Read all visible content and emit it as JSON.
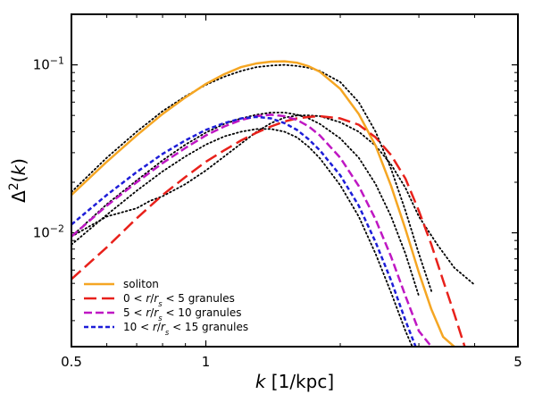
{
  "chart_data": {
    "type": "line",
    "xscale": "log",
    "yscale": "log",
    "xlim": [
      0.5,
      5
    ],
    "ylim": [
      0.0021,
      0.2
    ],
    "xlabel_parts": [
      {
        "text": "k",
        "italic": true
      },
      {
        "text": " [1/kpc]",
        "italic": false
      }
    ],
    "ylabel_parts": [
      {
        "text": "Δ",
        "italic": false
      },
      {
        "text": "2",
        "italic": false,
        "sup": true
      },
      {
        "text": "(",
        "italic": false
      },
      {
        "text": "k",
        "italic": true
      },
      {
        "text": ")",
        "italic": false
      }
    ],
    "xticks": [
      {
        "value": 0.5,
        "label": "0.5"
      },
      {
        "value": 1,
        "label": "1"
      },
      {
        "value": 5,
        "label": "5"
      }
    ],
    "xminor": [
      0.6,
      0.7,
      0.8,
      0.9,
      2,
      3,
      4
    ],
    "yticks": [
      {
        "value": 0.01,
        "base": "10",
        "exp": "−2"
      },
      {
        "value": 0.1,
        "base": "10",
        "exp": "−1"
      }
    ],
    "yminor": [
      0.003,
      0.004,
      0.005,
      0.006,
      0.007,
      0.008,
      0.009,
      0.02,
      0.03,
      0.04,
      0.05,
      0.06,
      0.07,
      0.08,
      0.09
    ],
    "legend_position": "lower-left",
    "series": [
      {
        "name": "soliton",
        "color": "#f5a623",
        "dash": "solid",
        "in_legend": true,
        "x": [
          0.5,
          0.6,
          0.7,
          0.8,
          0.9,
          1.0,
          1.1,
          1.2,
          1.3,
          1.4,
          1.5,
          1.6,
          1.7,
          1.8,
          2.0,
          2.2,
          2.4,
          2.6,
          2.8,
          3.0,
          3.2,
          3.4,
          3.6
        ],
        "y": [
          0.0168,
          0.0265,
          0.038,
          0.051,
          0.064,
          0.077,
          0.088,
          0.097,
          0.102,
          0.1045,
          0.105,
          0.103,
          0.098,
          0.091,
          0.072,
          0.051,
          0.033,
          0.019,
          0.0105,
          0.0058,
          0.0035,
          0.0024,
          0.0021
        ]
      },
      {
        "name": "0<r/r_s<5 granules",
        "legend_parts": [
          {
            "text": "0 < ",
            "italic": false
          },
          {
            "text": "r",
            "italic": true
          },
          {
            "text": "/",
            "italic": false
          },
          {
            "text": "r",
            "italic": true
          },
          {
            "text": "s",
            "italic": true,
            "sub": true
          },
          {
            "text": " < 5 granules",
            "italic": false
          }
        ],
        "color": "#e8211b",
        "dash": "long",
        "in_legend": true,
        "x": [
          0.5,
          0.6,
          0.7,
          0.8,
          0.9,
          1.0,
          1.1,
          1.2,
          1.3,
          1.4,
          1.5,
          1.6,
          1.7,
          1.8,
          2.0,
          2.2,
          2.4,
          2.6,
          2.8,
          3.0,
          3.2,
          3.4,
          3.6,
          3.8
        ],
        "y": [
          0.0053,
          0.0082,
          0.0122,
          0.0168,
          0.0215,
          0.0265,
          0.031,
          0.0355,
          0.0395,
          0.043,
          0.046,
          0.048,
          0.049,
          0.0495,
          0.048,
          0.044,
          0.037,
          0.029,
          0.021,
          0.0135,
          0.0085,
          0.0052,
          0.0033,
          0.0021
        ]
      },
      {
        "name": "5<r/r_s<10 granules",
        "legend_parts": [
          {
            "text": "5 < ",
            "italic": false
          },
          {
            "text": "r",
            "italic": true
          },
          {
            "text": "/",
            "italic": false
          },
          {
            "text": "r",
            "italic": true
          },
          {
            "text": "s",
            "italic": true,
            "sub": true
          },
          {
            "text": " < 10 granules",
            "italic": false
          }
        ],
        "color": "#bf17c3",
        "dash": "medium",
        "in_legend": true,
        "x": [
          0.5,
          0.6,
          0.7,
          0.8,
          0.9,
          1.0,
          1.1,
          1.2,
          1.3,
          1.4,
          1.5,
          1.6,
          1.7,
          1.8,
          2.0,
          2.2,
          2.4,
          2.6,
          2.8,
          3.0,
          3.2
        ],
        "y": [
          0.0095,
          0.0145,
          0.02,
          0.026,
          0.032,
          0.038,
          0.043,
          0.047,
          0.0495,
          0.0505,
          0.0495,
          0.047,
          0.043,
          0.038,
          0.028,
          0.019,
          0.012,
          0.0072,
          0.0042,
          0.0026,
          0.0021
        ]
      },
      {
        "name": "10<r/r_s<15 granules",
        "legend_parts": [
          {
            "text": "10 < ",
            "italic": false
          },
          {
            "text": "r",
            "italic": true
          },
          {
            "text": "/",
            "italic": false
          },
          {
            "text": "r",
            "italic": true
          },
          {
            "text": "s",
            "italic": true,
            "sub": true
          },
          {
            "text": " < 15 granules",
            "italic": false
          }
        ],
        "color": "#1d1dd8",
        "dash": "short",
        "in_legend": true,
        "x": [
          0.5,
          0.6,
          0.7,
          0.8,
          0.9,
          1.0,
          1.1,
          1.2,
          1.3,
          1.4,
          1.5,
          1.6,
          1.7,
          1.8,
          2.0,
          2.2,
          2.4,
          2.6,
          2.8,
          2.95
        ],
        "y": [
          0.0112,
          0.0168,
          0.023,
          0.0295,
          0.0355,
          0.041,
          0.045,
          0.048,
          0.049,
          0.048,
          0.045,
          0.041,
          0.036,
          0.031,
          0.022,
          0.0145,
          0.0088,
          0.0052,
          0.003,
          0.0021
        ]
      },
      {
        "name": "",
        "color": "#000000",
        "dash": "dotted",
        "in_legend": false,
        "x": [
          0.5,
          0.6,
          0.7,
          0.8,
          0.9,
          1.0,
          1.1,
          1.2,
          1.3,
          1.4,
          1.5,
          1.6,
          1.7,
          1.8,
          2.0,
          2.2,
          2.4,
          2.6,
          2.8,
          3.0,
          3.2
        ],
        "y": [
          0.0175,
          0.028,
          0.04,
          0.053,
          0.065,
          0.076,
          0.085,
          0.092,
          0.097,
          0.099,
          0.1,
          0.0985,
          0.096,
          0.092,
          0.079,
          0.06,
          0.04,
          0.024,
          0.0135,
          0.0075,
          0.0045
        ]
      },
      {
        "name": "",
        "color": "#000000",
        "dash": "dotted",
        "in_legend": false,
        "x": [
          0.5,
          0.6,
          0.7,
          0.75,
          0.8,
          0.9,
          1.0,
          1.1,
          1.2,
          1.3,
          1.4,
          1.5,
          1.6,
          1.7,
          1.8,
          2.0,
          2.2,
          2.4,
          2.6,
          2.8,
          3.0,
          3.3,
          3.6,
          4.0
        ],
        "y": [
          0.0095,
          0.0125,
          0.014,
          0.0155,
          0.0165,
          0.0195,
          0.0235,
          0.0285,
          0.034,
          0.04,
          0.045,
          0.0485,
          0.05,
          0.05,
          0.0495,
          0.0455,
          0.04,
          0.033,
          0.0255,
          0.0185,
          0.0125,
          0.0085,
          0.0062,
          0.0049
        ]
      },
      {
        "name": "",
        "color": "#000000",
        "dash": "dotted",
        "in_legend": false,
        "x": [
          0.5,
          0.6,
          0.7,
          0.8,
          0.9,
          1.0,
          1.1,
          1.2,
          1.3,
          1.4,
          1.5,
          1.6,
          1.7,
          1.8,
          2.0,
          2.2,
          2.4,
          2.6,
          2.8,
          3.0
        ],
        "y": [
          0.0095,
          0.0148,
          0.0205,
          0.027,
          0.0335,
          0.0395,
          0.0445,
          0.048,
          0.0505,
          0.052,
          0.052,
          0.0505,
          0.048,
          0.0445,
          0.0365,
          0.028,
          0.0195,
          0.0125,
          0.0075,
          0.0042
        ]
      },
      {
        "name": "",
        "color": "#000000",
        "dash": "dotted",
        "in_legend": false,
        "x": [
          0.5,
          0.6,
          0.7,
          0.8,
          0.9,
          1.0,
          1.1,
          1.2,
          1.3,
          1.4,
          1.5,
          1.6,
          1.7,
          1.8,
          2.0,
          2.2,
          2.4,
          2.6,
          2.8,
          2.9
        ],
        "y": [
          0.0085,
          0.0128,
          0.0178,
          0.0232,
          0.0285,
          0.0335,
          0.0375,
          0.04,
          0.0415,
          0.0415,
          0.04,
          0.037,
          0.0325,
          0.0278,
          0.0192,
          0.0125,
          0.0075,
          0.0044,
          0.0026,
          0.0021
        ]
      }
    ]
  }
}
